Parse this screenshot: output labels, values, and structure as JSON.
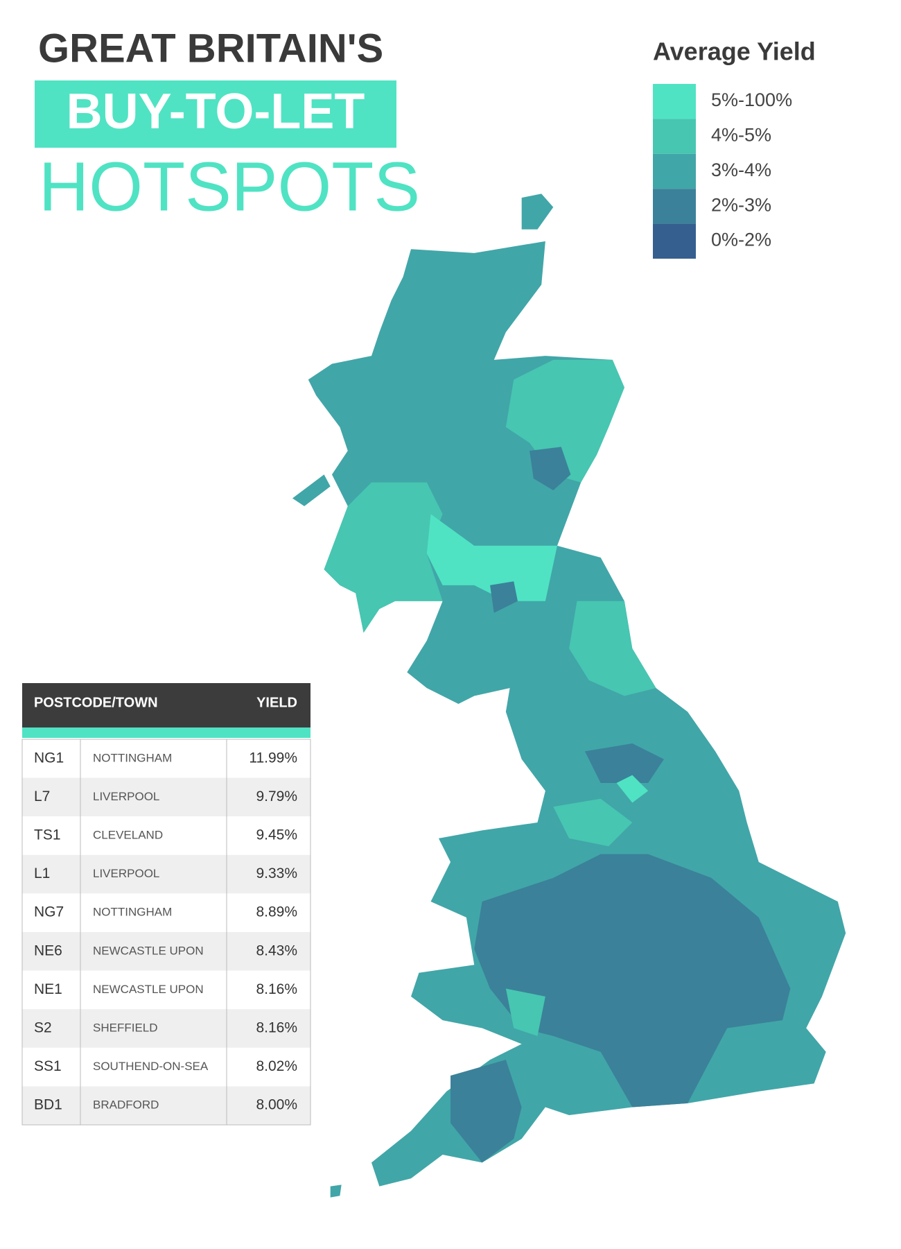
{
  "header": {
    "line1": "GREAT BRITAIN'S",
    "line2": "BUY-TO-LET",
    "line3": "HOTSPOTS"
  },
  "legend": {
    "title": "Average Yield",
    "items": [
      {
        "label": "5%-100%",
        "color": "#4fe3c3"
      },
      {
        "label": "4%-5%",
        "color": "#47c6b1"
      },
      {
        "label": "3%-4%",
        "color": "#41a6a8"
      },
      {
        "label": "2%-3%",
        "color": "#3b8199"
      },
      {
        "label": "0%-2%",
        "color": "#355f8e"
      }
    ]
  },
  "table": {
    "headers": [
      "POSTCODE/TOWN",
      "YIELD"
    ],
    "rows": [
      [
        "NG1",
        "NOTTINGHAM",
        "11.99%"
      ],
      [
        "L7",
        "LIVERPOOL",
        "9.79%"
      ],
      [
        "TS1",
        "CLEVELAND",
        "9.45%"
      ],
      [
        "L1",
        "LIVERPOOL",
        "9.33%"
      ],
      [
        "NG7",
        "NOTTINGHAM",
        "8.89%"
      ],
      [
        "NE6",
        "NEWCASTLE UPON",
        "8.43%"
      ],
      [
        "NE1",
        "NEWCASTLE UPON",
        "8.16%"
      ],
      [
        "S2",
        "SHEFFIELD",
        "8.16%"
      ],
      [
        "SS1",
        "SOUTHEND-ON-SEA",
        "8.02%"
      ],
      [
        "BD1",
        "BRADFORD",
        "8.00%"
      ]
    ]
  }
}
